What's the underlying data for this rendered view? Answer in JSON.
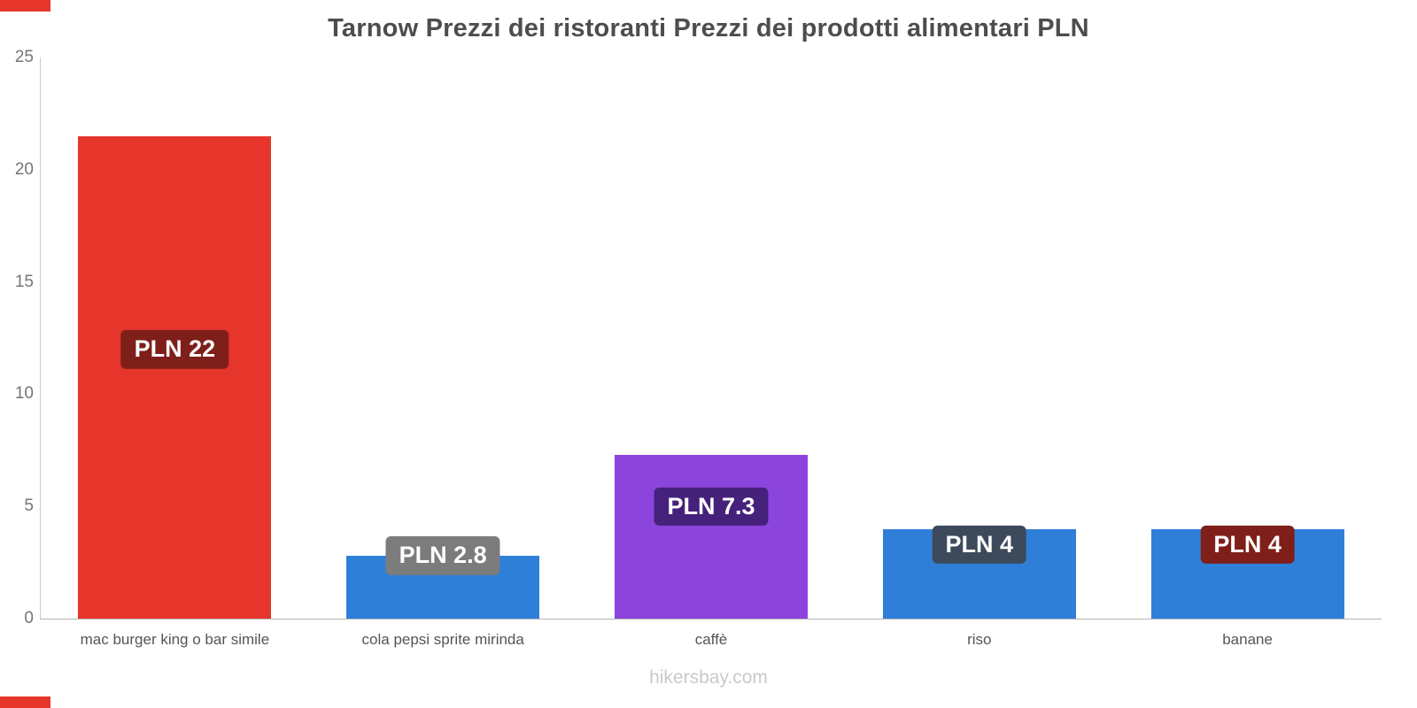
{
  "title": "Tarnow Prezzi dei ristoranti Prezzi dei prodotti alimentari PLN",
  "watermark": "hikersbay.com",
  "accent_color": "#e6352b",
  "chart_data": {
    "type": "bar",
    "title": "Tarnow Prezzi dei ristoranti Prezzi dei prodotti alimentari PLN",
    "xlabel": "",
    "ylabel": "",
    "ylim": [
      0,
      25
    ],
    "yticks": [
      0,
      5,
      10,
      15,
      20,
      25
    ],
    "grid": false,
    "legend": false,
    "categories": [
      "mac burger king o bar simile",
      "cola pepsi sprite mirinda",
      "caffè",
      "riso",
      "banane"
    ],
    "values": [
      21.5,
      2.8,
      7.3,
      4,
      4
    ],
    "data_labels": [
      "PLN 22",
      "PLN 2.8",
      "PLN 7.3",
      "PLN 4",
      "PLN 4"
    ],
    "bar_colors": [
      "#e6352b",
      "#2f7fd9",
      "#8b44dc",
      "#2f7fd9",
      "#2f7fd9"
    ],
    "badge_colors": [
      "#7e1f1a",
      "#7c7c7c",
      "#45217c",
      "#3d4a5c",
      "#7e1f1a"
    ],
    "label_center_heights": [
      12,
      2.8,
      5,
      3.3,
      3.3
    ],
    "currency": "PLN"
  }
}
